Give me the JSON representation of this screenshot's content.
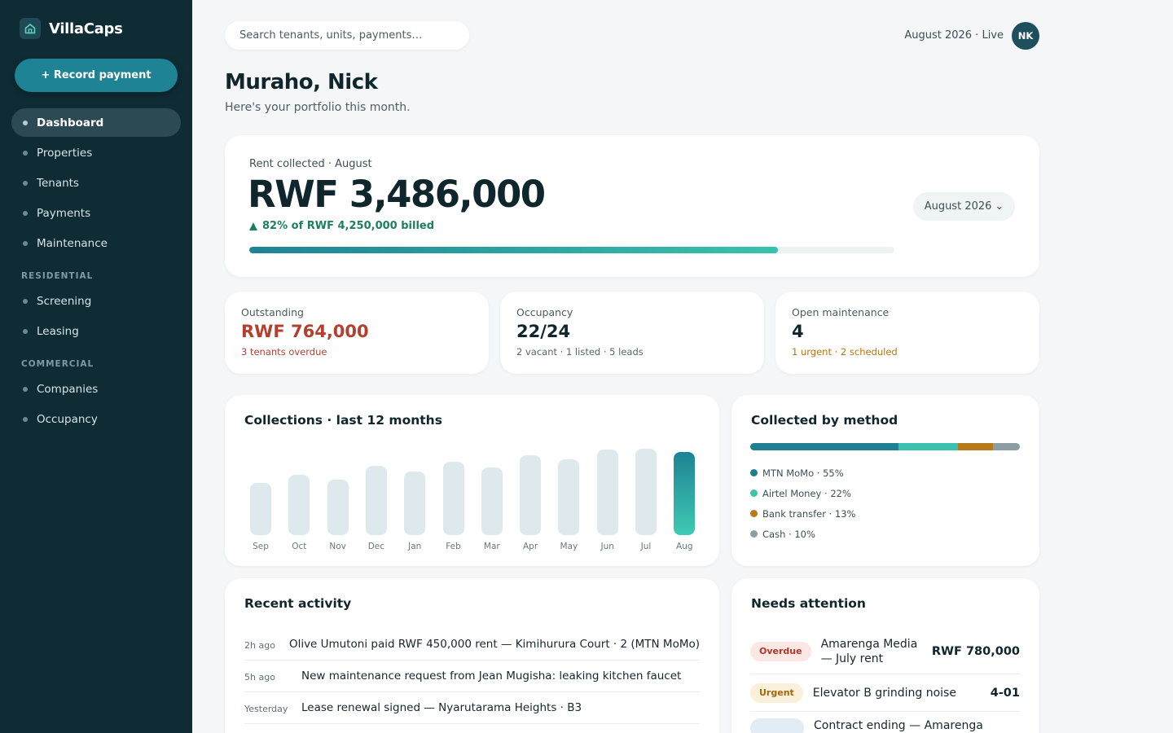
{
  "sidebar": {
    "brand": "VillaCaps",
    "record_button": "+ Record payment",
    "items": [
      {
        "label": "Dashboard"
      },
      {
        "label": "Properties"
      },
      {
        "label": "Tenants"
      },
      {
        "label": "Payments"
      },
      {
        "label": "Maintenance"
      }
    ],
    "sections": [
      {
        "label": "RESIDENTIAL",
        "items": [
          {
            "label": "Screening"
          },
          {
            "label": "Leasing"
          }
        ]
      },
      {
        "label": "COMMERCIAL",
        "items": [
          {
            "label": "Companies"
          },
          {
            "label": "Occupancy"
          }
        ]
      }
    ],
    "active_item": "Dashboard"
  },
  "topbar": {
    "search_placeholder": "Search tenants, units, payments…",
    "period": "August 2026 · Live",
    "avatar_initials": "NK"
  },
  "greeting": {
    "title": "Muraho, Nick",
    "subtitle": "Here's your portfolio this month."
  },
  "hero": {
    "label": "Rent collected · August",
    "amount": "RWF 3,486,000",
    "sub": "82% of RWF 4,250,000 billed",
    "progress": 0.82,
    "month_selector": "August 2026",
    "month_chevron": "⌄"
  },
  "stats": [
    {
      "label": "Outstanding",
      "value": "RWF 764,000",
      "note": "3 tenants overdue",
      "value_color": "#b3402f",
      "note_color": "#b3402f"
    },
    {
      "label": "Occupancy",
      "value": "22/24",
      "note": "2 vacant · 1 listed · 5 leads",
      "value_color": "#10262d",
      "note_color": "#56666c"
    },
    {
      "label": "Open maintenance",
      "value": "4",
      "note": "1 urgent · 2 scheduled",
      "value_color": "#10262d",
      "note_color": "#b87410"
    }
  ],
  "collections": {
    "title": "Collections · last 12 months"
  },
  "chart_data": {
    "type": "bar",
    "categories": [
      "Sep",
      "Oct",
      "Nov",
      "Dec",
      "Jan",
      "Feb",
      "Mar",
      "Apr",
      "May",
      "Jun",
      "Jul",
      "Aug"
    ],
    "values": [
      63,
      73,
      67,
      83,
      77,
      88,
      81,
      96,
      91,
      103,
      104,
      100
    ],
    "highlight_index": 11,
    "colors": {
      "bar": "#dde9ec",
      "highlight_top": "#1e8394",
      "highlight_bottom": "#3fcab2"
    }
  },
  "method": {
    "title": "Collected by method",
    "items": [
      {
        "label": "MTN MoMo · 55%",
        "percent": 55,
        "color": "#1e7f92"
      },
      {
        "label": "Airtel Money · 22%",
        "percent": 22,
        "color": "#3cc3b0"
      },
      {
        "label": "Bank transfer · 13%",
        "percent": 13,
        "color": "#b87a1c"
      },
      {
        "label": "Cash · 10%",
        "percent": 10,
        "color": "#8c9ea4"
      }
    ]
  },
  "activity": {
    "title": "Recent activity",
    "rows": [
      {
        "time": "2h ago",
        "text": "Olive Umutoni paid RWF 450,000 rent — Kimihurura Court · 2 (MTN MoMo)"
      },
      {
        "time": "5h ago",
        "text": "New maintenance request from Jean Mugisha: leaking kitchen faucet"
      },
      {
        "time": "Yesterday",
        "text": "Lease renewal signed — Nyarutarama Heights · B3"
      }
    ]
  },
  "attention": {
    "title": "Needs attention",
    "rows": [
      {
        "badge": "Overdue",
        "badge_class": "badge-overdue",
        "text": "Amarenga Media — July rent",
        "value": "RWF 780,000"
      },
      {
        "badge": "Urgent",
        "badge_class": "badge-urgent",
        "text": "Elevator B grinding noise",
        "value": "4-01"
      },
      {
        "badge": "",
        "badge_class": "badge-ending",
        "text": "Contract ending — Amarenga",
        "value": ""
      }
    ]
  },
  "icons": {
    "brand": "home-icon"
  }
}
